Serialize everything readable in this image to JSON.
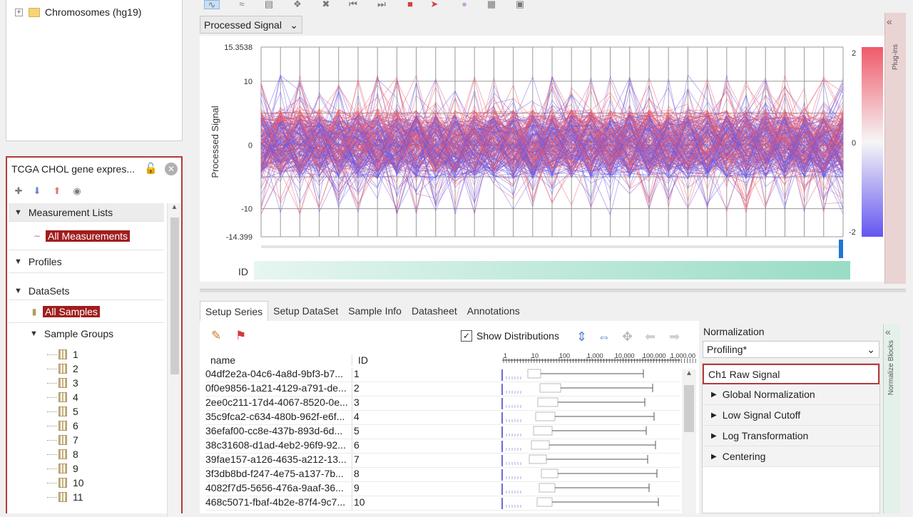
{
  "tree_top": {
    "root_label": "Chromosomes (hg19)"
  },
  "project": {
    "title": "TCGA CHOL gene expres...",
    "sections": {
      "measurement_lists": "Measurement Lists",
      "all_measurements": "All Measurements",
      "profiles": "Profiles",
      "datasets": "DataSets",
      "all_samples": "All Samples",
      "sample_groups": "Sample Groups"
    },
    "groups": [
      "1",
      "2",
      "3",
      "4",
      "5",
      "6",
      "7",
      "8",
      "9",
      "10",
      "11"
    ]
  },
  "view": {
    "signal_select": "Processed Signal",
    "plugins_label": "Plug-ins",
    "chart_id_label": "ID"
  },
  "chart_data": {
    "type": "line",
    "ylabel": "Processed Signal",
    "ymax_label": "15.3538",
    "ymin_label": "-14.399",
    "y_ticks": [
      "10",
      "0",
      "-10"
    ],
    "ylim": [
      -14.399,
      15.3538
    ],
    "color_scale": {
      "max": "2",
      "mid": "0",
      "min": "-2",
      "high_color": "#e85a6c",
      "low_color": "#6a5ae8"
    },
    "x_count": 30
  },
  "tabs": [
    "Setup Series",
    "Setup DataSet",
    "Sample Info",
    "Datasheet",
    "Annotations"
  ],
  "setup": {
    "show_distributions": "Show Distributions",
    "col_name": "name",
    "col_id": "ID",
    "scale_ticks": [
      "1",
      "10",
      "100",
      "1,000",
      "10,000",
      "100,000",
      "1,000,00"
    ],
    "rows": [
      {
        "name": "04df2e2a-04c6-4a8d-9bf3-b7...",
        "id": "1"
      },
      {
        "name": "0f0e9856-1a21-4129-a791-de...",
        "id": "2"
      },
      {
        "name": "2ee0c211-17d4-4067-8520-0e...",
        "id": "3"
      },
      {
        "name": "35c9fca2-c634-480b-962f-e6f...",
        "id": "4"
      },
      {
        "name": "36efaf00-cc8e-437b-893d-6d...",
        "id": "5"
      },
      {
        "name": "38c31608-d1ad-4eb2-96f9-92...",
        "id": "6"
      },
      {
        "name": "39fae157-a126-4635-a212-13...",
        "id": "7"
      },
      {
        "name": "3f3db8bd-f247-4e75-a137-7b...",
        "id": "8"
      },
      {
        "name": "4082f7d5-5656-476a-9aaf-36...",
        "id": "9"
      },
      {
        "name": "468c5071-fbaf-4b2e-87f4-9c7...",
        "id": "10"
      }
    ]
  },
  "normalization": {
    "label": "Normalization",
    "select": "Profiling*",
    "blocks_label": "Normalize Blocks",
    "steps": [
      "Ch1 Raw Signal",
      "Global Normalization",
      "Low Signal Cutoff",
      "Log Transformation",
      "Centering"
    ]
  }
}
